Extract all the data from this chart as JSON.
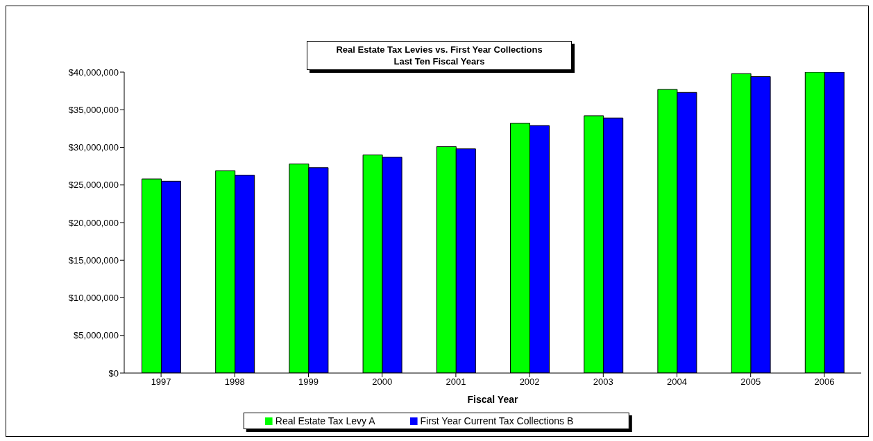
{
  "chart_data": {
    "type": "bar",
    "title": "Real Estate Tax Levies vs. First Year Collections",
    "subtitle": "Last Ten Fiscal Years",
    "xlabel": "Fiscal Year",
    "categories": [
      "1997",
      "1998",
      "1999",
      "2000",
      "2001",
      "2002",
      "2003",
      "2004",
      "2005",
      "2006"
    ],
    "series": [
      {
        "name": "Real Estate Tax Levy A",
        "color": "#00ff00",
        "values": [
          25800000,
          26900000,
          27800000,
          29000000,
          30100000,
          33200000,
          34200000,
          37700000,
          39800000,
          40000000
        ]
      },
      {
        "name": "First Year Current Tax Collections B",
        "color": "#0000ff",
        "values": [
          25500000,
          26300000,
          27300000,
          28700000,
          29800000,
          32900000,
          33900000,
          37300000,
          39400000,
          40000000
        ]
      }
    ],
    "ylim": [
      0,
      40000000
    ],
    "yticks": [
      {
        "value": 0,
        "label": "$0"
      },
      {
        "value": 5000000,
        "label": "$5,000,000"
      },
      {
        "value": 10000000,
        "label": "$10,000,000"
      },
      {
        "value": 15000000,
        "label": "$15,000,000"
      },
      {
        "value": 20000000,
        "label": "$20,000,000"
      },
      {
        "value": 25000000,
        "label": "$25,000,000"
      },
      {
        "value": 30000000,
        "label": "$30,000,000"
      },
      {
        "value": 35000000,
        "label": "$35,000,000"
      },
      {
        "value": 40000000,
        "label": "$40,000,000"
      }
    ],
    "grid": false,
    "legend": "bottom"
  }
}
